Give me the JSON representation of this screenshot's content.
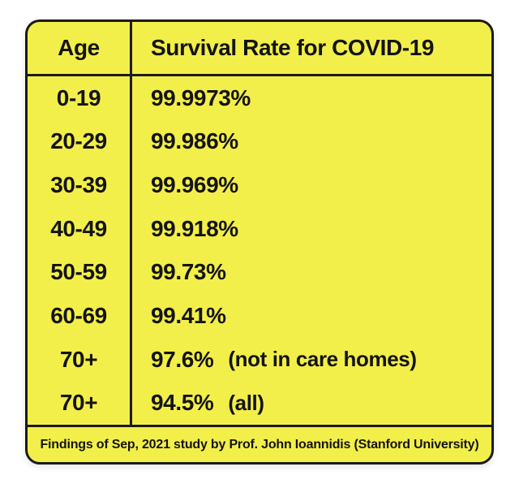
{
  "colors": {
    "card_background": "#f3ef4a",
    "border": "#1b1b1b",
    "text": "#141414",
    "page_background": "#ffffff"
  },
  "table": {
    "header": {
      "age": "Age",
      "rate": "Survival Rate for COVID-19"
    },
    "rows": [
      {
        "age": "0-19",
        "rate": "99.9973%",
        "note": ""
      },
      {
        "age": "20-29",
        "rate": "99.986%",
        "note": ""
      },
      {
        "age": "30-39",
        "rate": "99.969%",
        "note": ""
      },
      {
        "age": "40-49",
        "rate": "99.918%",
        "note": ""
      },
      {
        "age": "50-59",
        "rate": "99.73%",
        "note": ""
      },
      {
        "age": "60-69",
        "rate": "99.41%",
        "note": ""
      },
      {
        "age": "70+",
        "rate": "97.6%",
        "note": "(not in care homes)"
      },
      {
        "age": "70+",
        "rate": "94.5%",
        "note": "(all)"
      }
    ],
    "footer": "Findings of Sep, 2021 study by Prof. John Ioannidis (Stanford University)"
  },
  "chart_data": {
    "type": "table",
    "title": "Survival Rate for COVID-19",
    "columns": [
      "Age",
      "Survival Rate for COVID-19"
    ],
    "categories": [
      "0-19",
      "20-29",
      "30-39",
      "40-49",
      "50-59",
      "60-69",
      "70+ (not in care homes)",
      "70+ (all)"
    ],
    "values": [
      99.9973,
      99.986,
      99.969,
      99.918,
      99.73,
      99.41,
      97.6,
      94.5
    ],
    "value_unit": "%",
    "caption": "Findings of Sep, 2021 study by Prof. John Ioannidis (Stanford University)",
    "layout": "two-column bordered table on yellow card, caption row at bottom"
  }
}
